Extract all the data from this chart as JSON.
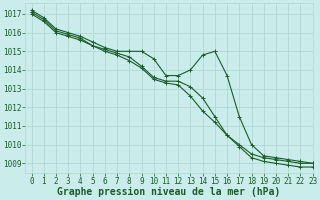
{
  "background_color": "#caecea",
  "grid_color": "#b0d8d4",
  "line_color": "#1a5c2a",
  "xlim": [
    -0.5,
    23
  ],
  "ylim": [
    1008.5,
    1017.6
  ],
  "yticks": [
    1009,
    1010,
    1011,
    1012,
    1013,
    1014,
    1015,
    1016,
    1017
  ],
  "xticks": [
    0,
    1,
    2,
    3,
    4,
    5,
    6,
    7,
    8,
    9,
    10,
    11,
    12,
    13,
    14,
    15,
    16,
    17,
    18,
    19,
    20,
    21,
    22,
    23
  ],
  "xlabel": "Graphe pression niveau de la mer (hPa)",
  "xlabel_fontsize": 7.0,
  "tick_fontsize": 5.5,
  "series": [
    [
      1017.2,
      1016.8,
      1016.2,
      1016.0,
      1015.8,
      1015.5,
      1015.2,
      1015.0,
      1015.0,
      1015.0,
      1014.6,
      1013.7,
      1013.7,
      1014.0,
      1014.8,
      1015.0,
      1013.7,
      1011.5,
      1010.0,
      1009.4,
      1009.3,
      1009.2,
      1009.1,
      1009.0
    ],
    [
      1017.1,
      1016.7,
      1016.1,
      1015.9,
      1015.7,
      1015.3,
      1015.1,
      1014.9,
      1014.7,
      1014.2,
      1013.6,
      1013.4,
      1013.4,
      1013.1,
      1012.5,
      1011.5,
      1010.5,
      1010.0,
      1009.5,
      1009.3,
      1009.2,
      1009.1,
      1009.0,
      1009.0
    ],
    [
      1017.0,
      1016.6,
      1016.0,
      1015.8,
      1015.6,
      1015.3,
      1015.0,
      1014.8,
      1014.5,
      1014.1,
      1013.5,
      1013.3,
      1013.2,
      1012.6,
      1011.8,
      1011.2,
      1010.5,
      1009.9,
      1009.3,
      1009.1,
      1009.0,
      1008.9,
      1008.8,
      1008.8
    ]
  ],
  "marker": "+",
  "marker_size": 3.5,
  "line_width": 0.8
}
